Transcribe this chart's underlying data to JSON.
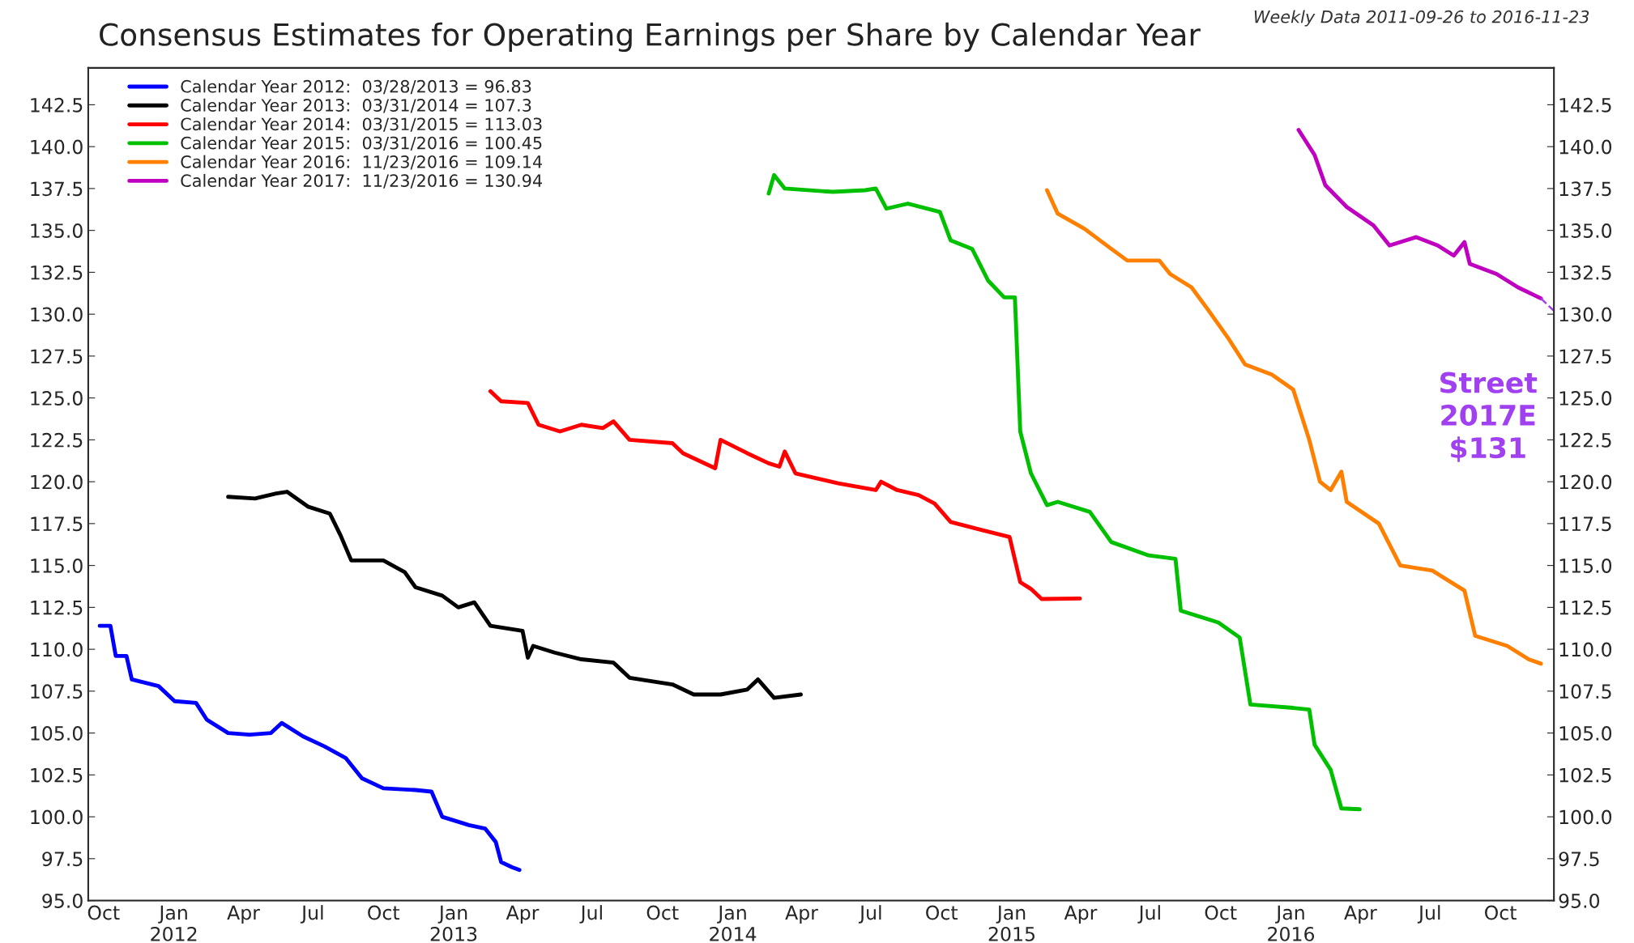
{
  "chart_data": {
    "type": "line",
    "title": "Consensus Estimates for Operating Earnings per Share by Calendar Year",
    "subtitle": "Weekly Data 2011-09-26 to 2016-11-23",
    "annotations": [
      "Street\n2017E\n$131"
    ],
    "xlim": [
      "2011-09-11",
      "2016-12-10"
    ],
    "xticks": [
      {
        "value": "2011-10-01",
        "label": "Oct"
      },
      {
        "value": "2012-01-01",
        "label": "Jan\n2012"
      },
      {
        "value": "2012-04-01",
        "label": "Apr"
      },
      {
        "value": "2012-07-01",
        "label": "Jul"
      },
      {
        "value": "2012-10-01",
        "label": "Oct"
      },
      {
        "value": "2013-01-01",
        "label": "Jan\n2013"
      },
      {
        "value": "2013-04-01",
        "label": "Apr"
      },
      {
        "value": "2013-07-01",
        "label": "Jul"
      },
      {
        "value": "2013-10-01",
        "label": "Oct"
      },
      {
        "value": "2014-01-01",
        "label": "Jan\n2014"
      },
      {
        "value": "2014-04-01",
        "label": "Apr"
      },
      {
        "value": "2014-07-01",
        "label": "Jul"
      },
      {
        "value": "2014-10-01",
        "label": "Oct"
      },
      {
        "value": "2015-01-01",
        "label": "Jan\n2015"
      },
      {
        "value": "2015-04-01",
        "label": "Apr"
      },
      {
        "value": "2015-07-01",
        "label": "Jul"
      },
      {
        "value": "2015-10-01",
        "label": "Oct"
      },
      {
        "value": "2016-01-01",
        "label": "Jan\n2016"
      },
      {
        "value": "2016-04-01",
        "label": "Apr"
      },
      {
        "value": "2016-07-01",
        "label": "Jul"
      },
      {
        "value": "2016-10-01",
        "label": "Oct"
      }
    ],
    "ylim": [
      95,
      144.7
    ],
    "yticks": [
      {
        "value": 95,
        "label": "95.0"
      },
      {
        "value": 97.5,
        "label": "97.5"
      },
      {
        "value": 100,
        "label": "100.0"
      },
      {
        "value": 102.5,
        "label": "102.5"
      },
      {
        "value": 105,
        "label": "105.0"
      },
      {
        "value": 107.5,
        "label": "107.5"
      },
      {
        "value": 110,
        "label": "110.0"
      },
      {
        "value": 112.5,
        "label": "112.5"
      },
      {
        "value": 115,
        "label": "115.0"
      },
      {
        "value": 117.5,
        "label": "117.5"
      },
      {
        "value": 120,
        "label": "120.0"
      },
      {
        "value": 122.5,
        "label": "122.5"
      },
      {
        "value": 125,
        "label": "125.0"
      },
      {
        "value": 127.5,
        "label": "127.5"
      },
      {
        "value": 130,
        "label": "130.0"
      },
      {
        "value": 132.5,
        "label": "132.5"
      },
      {
        "value": 135,
        "label": "135.0"
      },
      {
        "value": 137.5,
        "label": "137.5"
      },
      {
        "value": 140,
        "label": "140.0"
      },
      {
        "value": 142.5,
        "label": "142.5"
      }
    ],
    "y2lim": [
      95,
      144.7
    ],
    "y2ticks": [
      {
        "value": 95,
        "label": "95.0"
      },
      {
        "value": 97.5,
        "label": "97.5"
      },
      {
        "value": 100,
        "label": "100.0"
      },
      {
        "value": 102.5,
        "label": "102.5"
      },
      {
        "value": 105,
        "label": "105.0"
      },
      {
        "value": 107.5,
        "label": "107.5"
      },
      {
        "value": 110,
        "label": "110.0"
      },
      {
        "value": 112.5,
        "label": "112.5"
      },
      {
        "value": 115,
        "label": "115.0"
      },
      {
        "value": 117.5,
        "label": "117.5"
      },
      {
        "value": 120,
        "label": "120.0"
      },
      {
        "value": 122.5,
        "label": "122.5"
      },
      {
        "value": 125,
        "label": "125.0"
      },
      {
        "value": 127.5,
        "label": "127.5"
      },
      {
        "value": 130,
        "label": "130.0"
      },
      {
        "value": 132.5,
        "label": "132.5"
      },
      {
        "value": 135,
        "label": "135.0"
      },
      {
        "value": 137.5,
        "label": "137.5"
      },
      {
        "value": 140,
        "label": "140.0"
      },
      {
        "value": 142.5,
        "label": "142.5"
      }
    ],
    "grid": false,
    "legend": "top left",
    "series": [
      {
        "name": "Calendar Year 2012:  03/28/2013 = 96.83",
        "color": "#0000ff",
        "x": [
          "2011-09-26",
          "2011-10-10",
          "2011-10-17",
          "2011-10-31",
          "2011-11-07",
          "2011-12-12",
          "2012-01-02",
          "2012-01-30",
          "2012-02-13",
          "2012-03-12",
          "2012-04-09",
          "2012-05-07",
          "2012-05-21",
          "2012-06-18",
          "2012-07-16",
          "2012-08-13",
          "2012-09-03",
          "2012-10-01",
          "2012-11-12",
          "2012-12-03",
          "2012-12-17",
          "2013-01-21",
          "2013-02-11",
          "2013-02-25",
          "2013-03-04",
          "2013-03-18",
          "2013-03-28"
        ],
        "values": [
          111.4,
          111.4,
          109.6,
          109.6,
          108.2,
          107.8,
          106.9,
          106.8,
          105.8,
          105.0,
          104.9,
          105.0,
          105.6,
          104.8,
          104.2,
          103.5,
          102.3,
          101.7,
          101.6,
          101.5,
          100.0,
          99.5,
          99.3,
          98.5,
          97.3,
          97.0,
          96.83
        ]
      },
      {
        "name": "Calendar Year 2013:  03/31/2014 = 107.3",
        "color": "#000000",
        "x": [
          "2012-03-12",
          "2012-04-16",
          "2012-05-14",
          "2012-05-28",
          "2012-06-25",
          "2012-07-23",
          "2012-08-06",
          "2012-08-20",
          "2012-10-01",
          "2012-10-29",
          "2012-11-12",
          "2012-12-17",
          "2013-01-07",
          "2013-01-28",
          "2013-02-18",
          "2013-04-01",
          "2013-04-08",
          "2013-04-15",
          "2013-05-13",
          "2013-06-17",
          "2013-07-29",
          "2013-08-19",
          "2013-10-14",
          "2013-11-11",
          "2013-12-16",
          "2014-01-20",
          "2014-02-03",
          "2014-02-24",
          "2014-03-31"
        ],
        "values": [
          119.1,
          119.0,
          119.3,
          119.4,
          118.5,
          118.1,
          116.8,
          115.3,
          115.3,
          114.6,
          113.7,
          113.2,
          112.5,
          112.8,
          111.4,
          111.1,
          109.5,
          110.2,
          109.8,
          109.4,
          109.2,
          108.3,
          107.9,
          107.3,
          107.3,
          107.6,
          108.2,
          107.1,
          107.3
        ]
      },
      {
        "name": "Calendar Year 2014:  03/31/2015 = 113.03",
        "color": "#ff0000",
        "x": [
          "2013-02-18",
          "2013-03-04",
          "2013-04-08",
          "2013-04-22",
          "2013-05-20",
          "2013-06-17",
          "2013-07-15",
          "2013-07-29",
          "2013-08-19",
          "2013-10-14",
          "2013-10-28",
          "2013-12-09",
          "2013-12-16",
          "2014-01-20",
          "2014-02-17",
          "2014-03-03",
          "2014-03-10",
          "2014-03-24",
          "2014-05-19",
          "2014-07-07",
          "2014-07-14",
          "2014-08-04",
          "2014-09-01",
          "2014-09-22",
          "2014-10-13",
          "2014-11-24",
          "2014-12-29",
          "2015-01-12",
          "2015-01-26",
          "2015-02-09",
          "2015-03-31"
        ],
        "values": [
          125.4,
          124.8,
          124.7,
          123.4,
          123.0,
          123.4,
          123.2,
          123.6,
          122.5,
          122.3,
          121.7,
          120.8,
          122.5,
          121.7,
          121.1,
          120.9,
          121.8,
          120.5,
          119.9,
          119.5,
          120.0,
          119.5,
          119.2,
          118.7,
          117.6,
          117.1,
          116.7,
          114.0,
          113.6,
          113.0,
          113.03
        ]
      },
      {
        "name": "Calendar Year 2015:  03/31/2016 = 100.45",
        "color": "#00c000",
        "x": [
          "2014-02-17",
          "2014-02-24",
          "2014-03-10",
          "2014-05-12",
          "2014-06-23",
          "2014-07-07",
          "2014-07-21",
          "2014-08-18",
          "2014-09-29",
          "2014-10-13",
          "2014-11-10",
          "2014-12-01",
          "2014-12-22",
          "2015-01-05",
          "2015-01-12",
          "2015-01-26",
          "2015-02-16",
          "2015-03-02",
          "2015-04-13",
          "2015-05-11",
          "2015-06-29",
          "2015-08-03",
          "2015-08-10",
          "2015-09-28",
          "2015-10-26",
          "2015-11-09",
          "2016-01-04",
          "2016-01-25",
          "2016-02-01",
          "2016-02-22",
          "2016-03-07",
          "2016-03-31"
        ],
        "values": [
          137.2,
          138.3,
          137.5,
          137.3,
          137.4,
          137.5,
          136.3,
          136.6,
          136.1,
          134.4,
          133.9,
          132.0,
          131.0,
          131.0,
          123.0,
          120.5,
          118.6,
          118.8,
          118.2,
          116.4,
          115.6,
          115.4,
          112.3,
          111.6,
          110.7,
          106.7,
          106.5,
          106.4,
          104.3,
          102.8,
          100.5,
          100.45
        ]
      },
      {
        "name": "Calendar Year 2016:  11/23/2016 = 109.14",
        "color": "#ff8000",
        "x": [
          "2015-02-16",
          "2015-03-02",
          "2015-04-06",
          "2015-05-11",
          "2015-06-01",
          "2015-07-13",
          "2015-07-27",
          "2015-08-24",
          "2015-09-14",
          "2015-10-12",
          "2015-11-02",
          "2015-12-07",
          "2016-01-04",
          "2016-01-25",
          "2016-02-08",
          "2016-02-22",
          "2016-03-07",
          "2016-03-14",
          "2016-04-25",
          "2016-05-23",
          "2016-07-04",
          "2016-08-15",
          "2016-08-29",
          "2016-10-10",
          "2016-11-07",
          "2016-11-23"
        ],
        "values": [
          137.4,
          136.0,
          135.1,
          133.9,
          133.2,
          133.2,
          132.4,
          131.6,
          130.3,
          128.5,
          127.0,
          126.4,
          125.5,
          122.5,
          120.0,
          119.5,
          120.6,
          118.8,
          117.5,
          115.0,
          114.7,
          113.5,
          110.8,
          110.2,
          109.4,
          109.14
        ]
      },
      {
        "name": "Calendar Year 2017:  11/23/2016 = 130.94",
        "color": "#c000c0",
        "x": [
          "2016-01-11",
          "2016-02-01",
          "2016-02-15",
          "2016-03-14",
          "2016-04-18",
          "2016-05-09",
          "2016-06-13",
          "2016-07-11",
          "2016-08-01",
          "2016-08-15",
          "2016-08-22",
          "2016-09-26",
          "2016-10-24",
          "2016-11-23"
        ],
        "values": [
          141.0,
          139.5,
          137.7,
          136.4,
          135.3,
          134.1,
          134.6,
          134.1,
          133.5,
          134.3,
          133.0,
          132.4,
          131.6,
          130.94
        ]
      },
      {
        "color": "#a040f0",
        "line_style": "dashed",
        "x": [
          "2016-11-23",
          "2016-12-10"
        ],
        "values": [
          130.94,
          130.2
        ]
      }
    ]
  }
}
